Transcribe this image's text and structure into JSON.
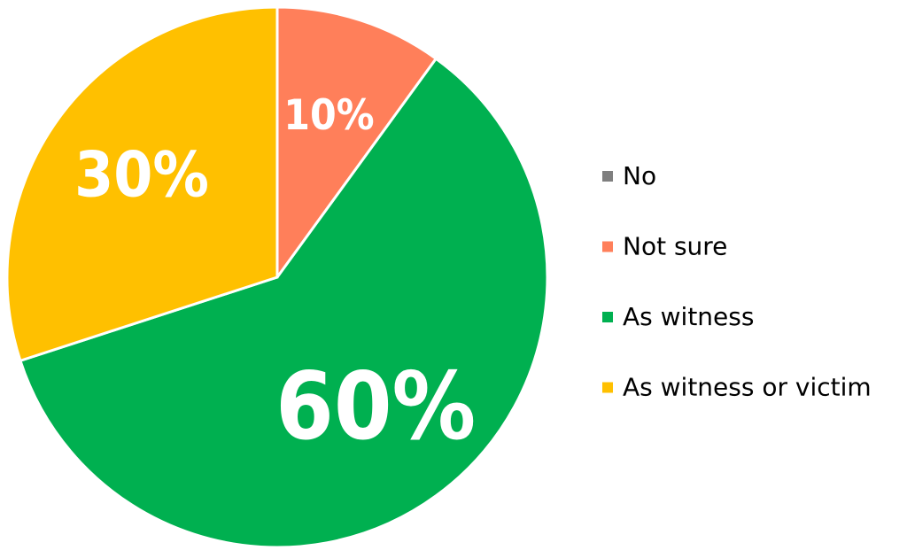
{
  "chart_data": {
    "type": "pie",
    "categories": [
      "No",
      "Not sure",
      "As witness",
      "As witness or victim"
    ],
    "values": [
      0,
      10,
      60,
      30
    ],
    "value_labels": [
      null,
      "10%",
      "60%",
      "30%"
    ],
    "colors": [
      "#7f7f7f",
      "#ff7f5a",
      "#00b050",
      "#ffc000"
    ],
    "legend": "right"
  }
}
